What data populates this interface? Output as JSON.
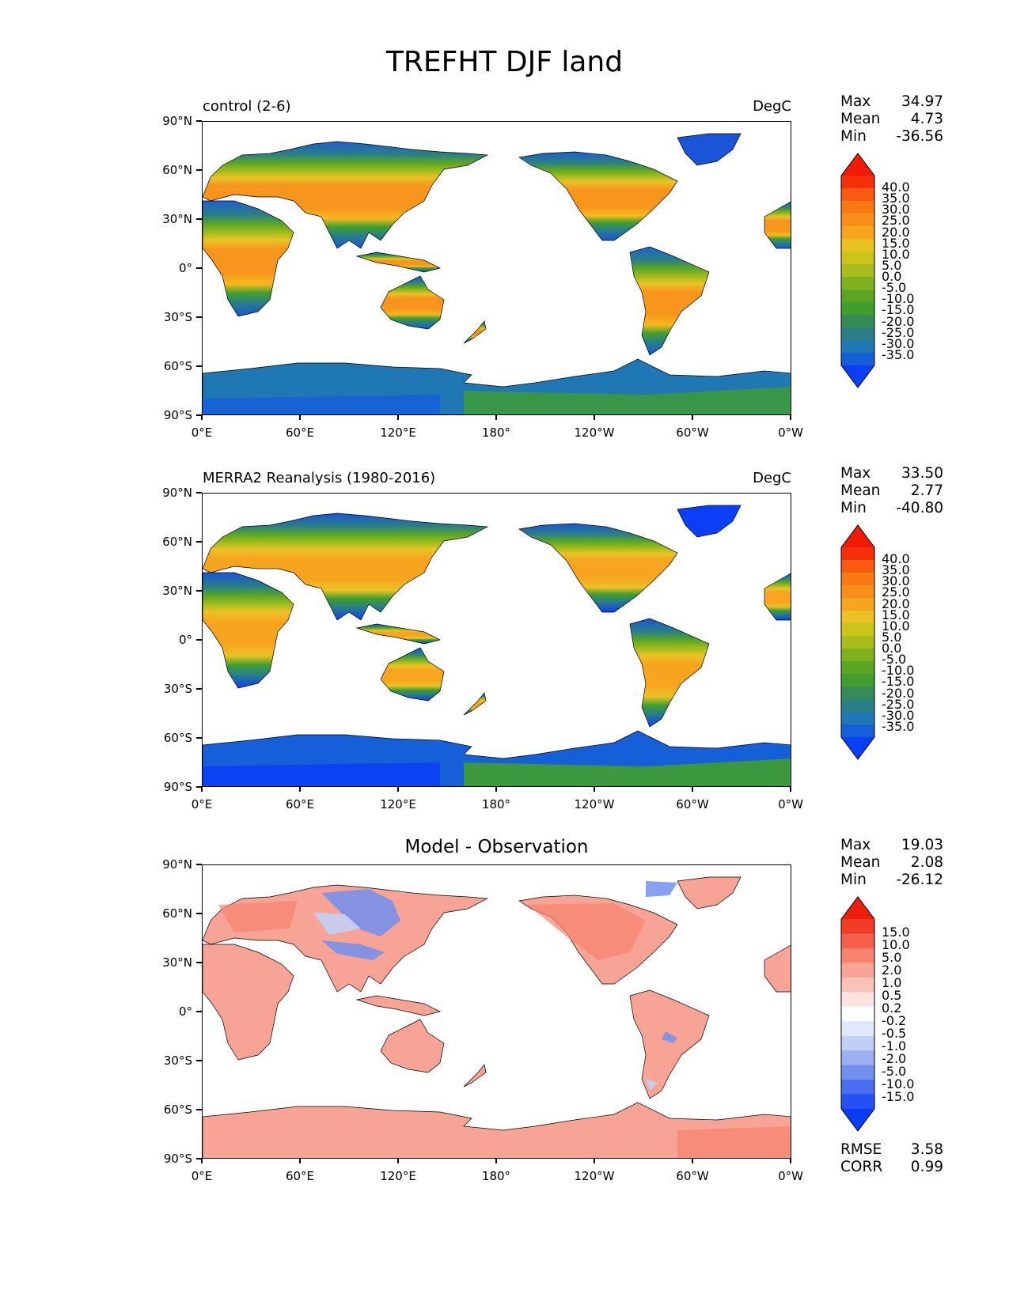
{
  "figure_title": "TREFHT DJF land",
  "axes": {
    "lat_labels": [
      "90°N",
      "60°N",
      "30°N",
      "0°",
      "30°S",
      "60°S",
      "90°S"
    ],
    "lon_labels": [
      "0°E",
      "60°E",
      "120°E",
      "180°",
      "120°W",
      "60°W",
      "0°W"
    ]
  },
  "panels": [
    {
      "title_left": "control (2-6)",
      "title_right": "DegC",
      "title_center": "",
      "stats": {
        "max_label": "Max",
        "max": "34.97",
        "mean_label": "Mean",
        "mean": "4.73",
        "min_label": "Min",
        "min": "-36.56"
      },
      "colorbar": {
        "labels": [
          "40.0",
          "35.0",
          "30.0",
          "25.0",
          "20.0",
          "15.0",
          "10.0",
          "5.0",
          "0.0",
          "-5.0",
          "-10.0",
          "-15.0",
          "-20.0",
          "-25.0",
          "-30.0",
          "-35.0"
        ],
        "colors": [
          "#0a3ff5",
          "#1560d8",
          "#1f77b4",
          "#2a7f86",
          "#368c56",
          "#3f9e2e",
          "#5aa624",
          "#7fb11f",
          "#a7bd1c",
          "#cbc51b",
          "#ebc226",
          "#f7a51f",
          "#f88f1a",
          "#f87a15",
          "#f75a10",
          "#f4300b",
          "#f01a05"
        ]
      }
    },
    {
      "title_left": "MERRA2 Reanalysis (1980-2016)",
      "title_right": "DegC",
      "title_center": "",
      "stats": {
        "max_label": "Max",
        "max": "33.50",
        "mean_label": "Mean",
        "mean": "2.77",
        "min_label": "Min",
        "min": "-40.80"
      },
      "colorbar": {
        "labels": [
          "40.0",
          "35.0",
          "30.0",
          "25.0",
          "20.0",
          "15.0",
          "10.0",
          "5.0",
          "0.0",
          "-5.0",
          "-10.0",
          "-15.0",
          "-20.0",
          "-25.0",
          "-30.0",
          "-35.0"
        ],
        "colors": [
          "#0a3ff5",
          "#1560d8",
          "#1f77b4",
          "#2a7f86",
          "#368c56",
          "#3f9e2e",
          "#5aa624",
          "#7fb11f",
          "#a7bd1c",
          "#cbc51b",
          "#ebc226",
          "#f7a51f",
          "#f88f1a",
          "#f87a15",
          "#f75a10",
          "#f4300b",
          "#f01a05"
        ]
      }
    },
    {
      "title_left": "",
      "title_right": "",
      "title_center": "Model - Observation",
      "stats": {
        "max_label": "Max",
        "max": "19.03",
        "mean_label": "Mean",
        "mean": "2.08",
        "min_label": "Min",
        "min": "-26.12"
      },
      "extra": {
        "rmse_label": "RMSE",
        "rmse": "3.58",
        "corr_label": "CORR",
        "corr": "0.99"
      },
      "colorbar": {
        "labels": [
          "15.0",
          "10.0",
          "5.0",
          "2.0",
          "1.0",
          "0.5",
          "0.2",
          "-0.2",
          "-0.5",
          "-1.0",
          "-2.0",
          "-5.0",
          "-10.0",
          "-15.0"
        ],
        "colors": [
          "#0b3cf7",
          "#2450f5",
          "#4a6ef2",
          "#7290ef",
          "#9cb0f0",
          "#c2cff5",
          "#e2e8fb",
          "#ffffff",
          "#fde3df",
          "#f9c3bb",
          "#f7a396",
          "#f6826f",
          "#f35f4a",
          "#f03c25",
          "#ed1f0c"
        ]
      }
    }
  ]
}
